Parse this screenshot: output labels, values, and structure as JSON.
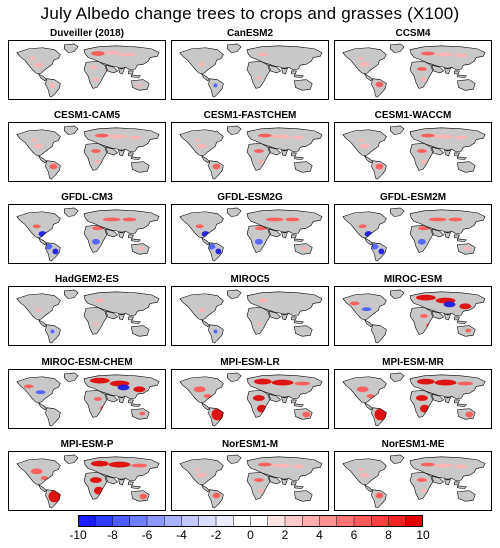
{
  "title": "July Albedo change trees to crops and grasses (X100)",
  "panels": [
    {
      "label": "Duveiller (2018)",
      "pattern": "obs"
    },
    {
      "label": "CanESM2",
      "pattern": "weak"
    },
    {
      "label": "CCSM4",
      "pattern": "moderate"
    },
    {
      "label": "CESM1-CAM5",
      "pattern": "moderate"
    },
    {
      "label": "CESM1-FASTCHEM",
      "pattern": "moderate"
    },
    {
      "label": "CESM1-WACCM",
      "pattern": "moderate"
    },
    {
      "label": "GFDL-CM3",
      "pattern": "mixed"
    },
    {
      "label": "GFDL-ESM2G",
      "pattern": "mixed"
    },
    {
      "label": "GFDL-ESM2M",
      "pattern": "mixed"
    },
    {
      "label": "HadGEM2-ES",
      "pattern": "weak"
    },
    {
      "label": "MIROC5",
      "pattern": "weak"
    },
    {
      "label": "MIROC-ESM",
      "pattern": "asia-strong"
    },
    {
      "label": "MIROC-ESM-CHEM",
      "pattern": "asia-strong"
    },
    {
      "label": "MPI-ESM-LR",
      "pattern": "strong"
    },
    {
      "label": "MPI-ESM-MR",
      "pattern": "strong"
    },
    {
      "label": "MPI-ESM-P",
      "pattern": "strong"
    },
    {
      "label": "NorESM1-M",
      "pattern": "moderate"
    },
    {
      "label": "NorESM1-ME",
      "pattern": "moderate"
    }
  ],
  "colorbar": {
    "min": -10,
    "max": 10,
    "tick_labels": [
      "-10",
      "-8",
      "-6",
      "-4",
      "-2",
      "0",
      "2",
      "4",
      "6",
      "8",
      "10"
    ],
    "colors_negative": [
      "#1a1aff",
      "#2f3cff",
      "#4d5dff",
      "#6e7cff",
      "#8c98ff",
      "#a9b2ff",
      "#c3c9ff",
      "#d9ddff",
      "#eceeff",
      "#ffffff"
    ],
    "colors_positive": [
      "#ffffff",
      "#ffe4e4",
      "#ffc9c9",
      "#ffadad",
      "#ff9191",
      "#ff7575",
      "#ff5a5a",
      "#ff3f3f",
      "#f42424",
      "#e00000"
    ]
  },
  "colors": {
    "land": "#c8c8c8",
    "coast": "#000000",
    "warm_light": "#ffb3b3",
    "warm": "#ff5555",
    "warm_strong": "#e00000",
    "cool": "#4a5cff",
    "cool_strong": "#1414e6"
  }
}
